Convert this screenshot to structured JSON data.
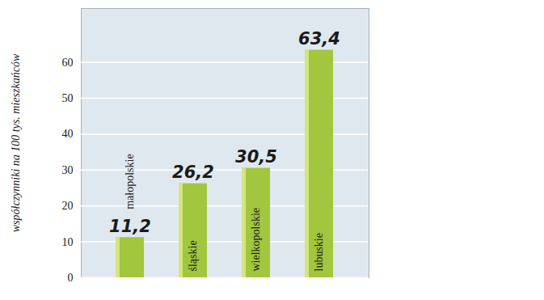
{
  "chart_data": {
    "type": "bar",
    "y_label": "współczynniki na 100 tys. mieszkańców",
    "categories": [
      "małopolskie",
      "śląskie",
      "wielkopolskie",
      "lubuskie"
    ],
    "values": [
      11.2,
      26.2,
      30.5,
      63.4
    ],
    "value_labels": [
      "11,2",
      "26,2",
      "30,5",
      "63,4"
    ],
    "color": "#a2c63e",
    "ylim": [
      0,
      75
    ],
    "yticks": [
      0,
      10,
      20,
      30,
      40,
      50,
      60
    ],
    "grid": true,
    "data_labels": true,
    "tick_labels": "y"
  }
}
